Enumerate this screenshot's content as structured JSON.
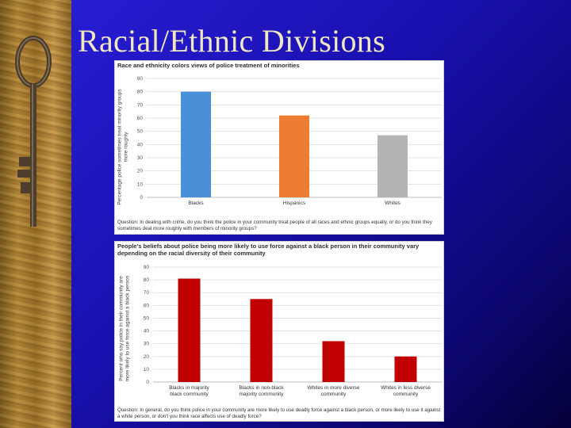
{
  "slide": {
    "title": "Racial/Ethnic Divisions"
  },
  "chart_data": [
    {
      "type": "bar",
      "title": "Race and ethnicity colors views of police treatment of minorities",
      "ylabel": "Percentage police sometimes treat minority groups more roughly",
      "categories": [
        "Blacks",
        "Hispanics",
        "Whites"
      ],
      "values": [
        80,
        62,
        47
      ],
      "colors": [
        "#4a90d9",
        "#ed7d31",
        "#b4b4b4"
      ],
      "ylim": [
        0,
        90
      ],
      "yticks": [
        0,
        10,
        20,
        30,
        40,
        50,
        60,
        70,
        80,
        90
      ],
      "grid": true,
      "question": "Question: In dealing with crime, do you think the police in your community treat people of all races and ethnic groups equally, or do you think they sometimes deal more roughly with members of minority groups?"
    },
    {
      "type": "bar",
      "title": "People's beliefs about police being more likely to use force against a black person in their community vary depending on the racial diversity of their community",
      "ylabel": "Percent who say police in their community are more likely to use force against a black person",
      "categories": [
        "Blacks in majority black community",
        "Blacks in non-black majority community",
        "Whites in more diverse community",
        "Whites in less diverse community"
      ],
      "values": [
        81,
        65,
        32,
        20
      ],
      "colors": [
        "#c00000",
        "#c00000",
        "#c00000",
        "#c00000"
      ],
      "ylim": [
        0,
        90
      ],
      "yticks": [
        0,
        10,
        20,
        30,
        40,
        50,
        60,
        70,
        80,
        90
      ],
      "grid": true,
      "question": "Question: In general, do you think police in your community are more likely to use deadly force against a black person, or more likely to use it against a white person, or don't you think race affects use of deadly force?"
    }
  ]
}
